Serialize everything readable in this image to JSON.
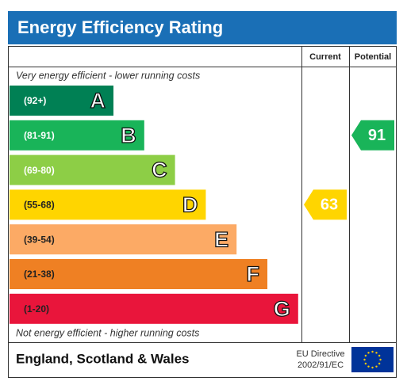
{
  "chart_data": {
    "type": "epc",
    "title": "Energy Efficiency Rating",
    "column_headers": [
      "Current",
      "Potential"
    ],
    "top_note": "Very energy efficient - lower running costs",
    "bottom_note": "Not energy efficient - higher running costs",
    "bands": [
      {
        "range": "(92+)",
        "letter": "A",
        "color": "#008054"
      },
      {
        "range": "(81-91)",
        "letter": "B",
        "color": "#19b459"
      },
      {
        "range": "(69-80)",
        "letter": "C",
        "color": "#8dce46"
      },
      {
        "range": "(55-68)",
        "letter": "D",
        "color": "#ffd500"
      },
      {
        "range": "(39-54)",
        "letter": "E",
        "color": "#fcaa65"
      },
      {
        "range": "(21-38)",
        "letter": "F",
        "color": "#ef8023"
      },
      {
        "range": "(1-20)",
        "letter": "G",
        "color": "#e9153b"
      }
    ],
    "current": 63,
    "potential": 91,
    "footer": "England, Scotland & Wales",
    "directive": [
      "EU Directive",
      "2002/91/EC"
    ]
  }
}
